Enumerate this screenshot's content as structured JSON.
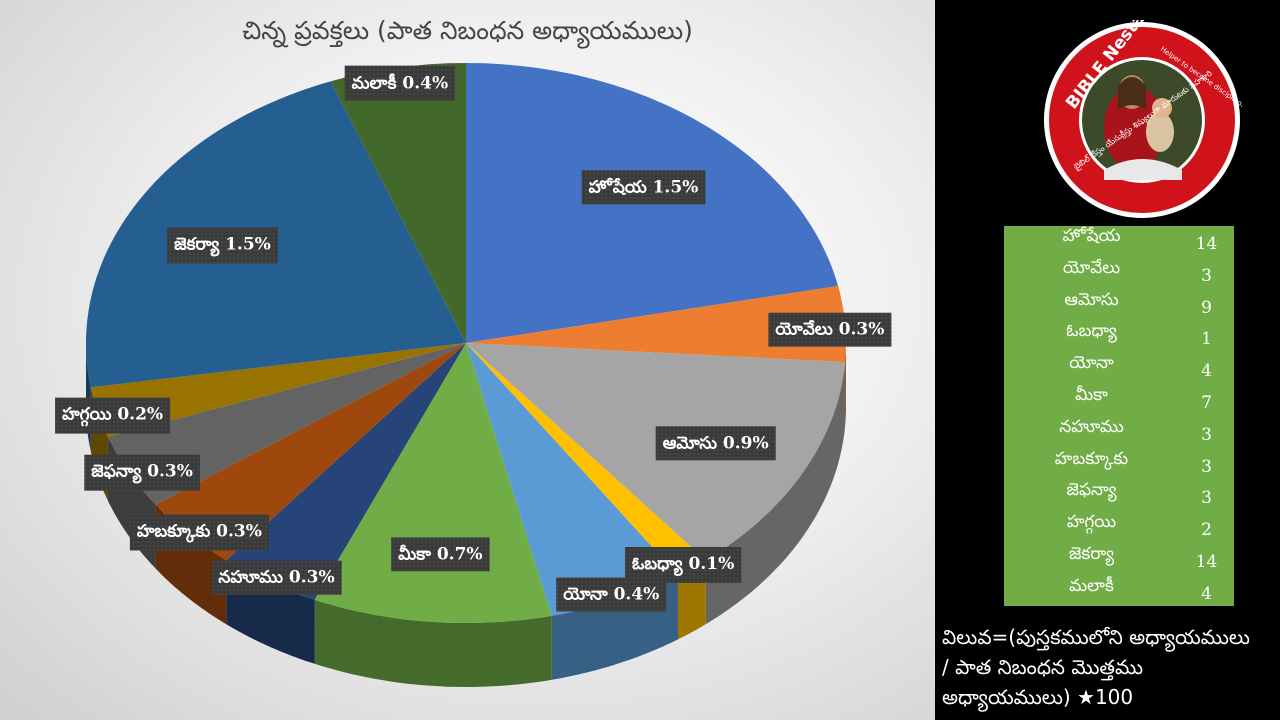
{
  "chart_data": {
    "type": "pie",
    "title": "చిన్న ప్రవక్తలు (పాత నిబంధన అధ్యాయములు)",
    "categories": [
      "హోషేయ",
      "యోవేలు",
      "ఆమోసు",
      "ఓబధ్యా",
      "యోనా",
      "మీకా",
      "నహూము",
      "హబక్కూకు",
      "జెఫన్యా",
      "హగ్గయి",
      "జెకర్యా",
      "మలాకీ"
    ],
    "values": [
      1.5,
      0.3,
      0.9,
      0.1,
      0.4,
      0.7,
      0.3,
      0.3,
      0.3,
      0.2,
      1.5,
      0.4
    ],
    "data_labels": [
      "హోషేయ 1.5%",
      "యోవేలు 0.3%",
      "ఆమోసు 0.9%",
      "ఓబధ్యా 0.1%",
      "యోనా 0.4%",
      "మీకా 0.7%",
      "నహూము 0.3%",
      "హబక్కూకు 0.3%",
      "జెఫన్యా 0.3%",
      "హగ్గయి 0.2%",
      "జెకర్యా 1.5%",
      "మలాకీ 0.4%"
    ],
    "colors": [
      "#4472c4",
      "#ed7d31",
      "#a5a5a5",
      "#ffc000",
      "#5b9bd5",
      "#70ad47",
      "#264478",
      "#9e480e",
      "#636363",
      "#997300",
      "#255e91",
      "#43682b"
    ]
  },
  "table": {
    "rows": [
      {
        "name": "హోషేయ",
        "value": "14"
      },
      {
        "name": "యోవేలు",
        "value": "3"
      },
      {
        "name": "ఆమోసు",
        "value": "9"
      },
      {
        "name": "ఓబధ్యా",
        "value": "1"
      },
      {
        "name": "యోనా",
        "value": "4"
      },
      {
        "name": "మీకా",
        "value": "7"
      },
      {
        "name": "నహూము",
        "value": "3"
      },
      {
        "name": "హబక్కూకు",
        "value": "3"
      },
      {
        "name": "జెఫన్యా",
        "value": "3"
      },
      {
        "name": "హగ్గయి",
        "value": "2"
      },
      {
        "name": "జెకర్యా",
        "value": "14"
      },
      {
        "name": "మలాకీ",
        "value": "4"
      }
    ]
  },
  "formula": {
    "line1": "విలువ=(పుస్తకములోని అధ్యాయములు",
    "line2": "/ పాత నిబంధన మొత్తము",
    "line3": "అధ్యాయములు) ★100"
  },
  "logo": {
    "brand": "BIBLE Nestam",
    "tagline": "Helper to become disciple of JESUS CHRIST",
    "telugu_text": "బైబిల్ నేస్తం యేసుక్రీస్తు శిష్యులుగా మారుటకు సహకారి"
  }
}
